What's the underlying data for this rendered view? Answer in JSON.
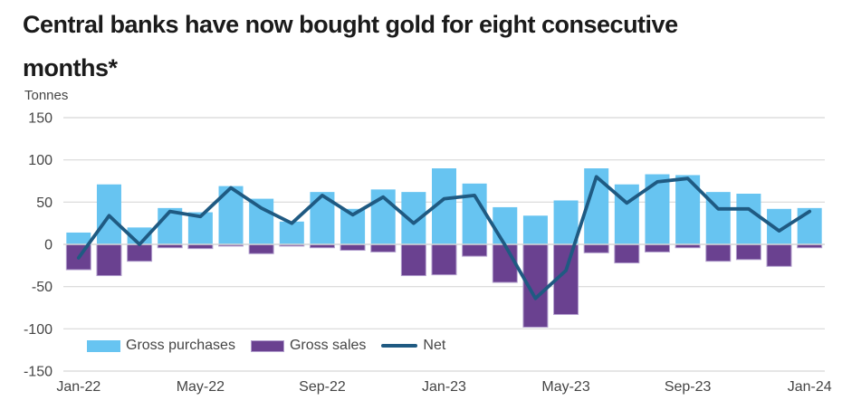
{
  "header": {
    "title_lines": [
      "Central banks have now bought gold for eight consecutive",
      "months*"
    ]
  },
  "chart_data": {
    "type": "bar",
    "subtype": "combo-bar-line",
    "unit_label": "Tonnes",
    "ylim": [
      -150,
      150
    ],
    "y_ticks": [
      150,
      100,
      50,
      0,
      -50,
      -100,
      -150
    ],
    "grid": true,
    "legend_position": "bottom-inside",
    "categories": [
      "Jan-22",
      "Feb-22",
      "Mar-22",
      "Apr-22",
      "May-22",
      "Jun-22",
      "Jul-22",
      "Aug-22",
      "Sep-22",
      "Oct-22",
      "Nov-22",
      "Dec-22",
      "Jan-23",
      "Feb-23",
      "Mar-23",
      "Apr-23",
      "May-23",
      "Jun-23",
      "Jul-23",
      "Aug-23",
      "Sep-23",
      "Oct-23",
      "Nov-23",
      "Dec-23",
      "Jan-24"
    ],
    "x_tick_indices": [
      0,
      4,
      8,
      12,
      16,
      20,
      24
    ],
    "x_tick_labels": [
      "Jan-22",
      "May-22",
      "Sep-22",
      "Jan-23",
      "May-23",
      "Sep-23",
      "Jan-24"
    ],
    "series": [
      {
        "name": "Gross purchases",
        "type": "bar",
        "color": "#67C4F1",
        "values": [
          14,
          71,
          20,
          43,
          38,
          69,
          54,
          27,
          62,
          42,
          65,
          62,
          90,
          72,
          44,
          34,
          52,
          90,
          71,
          83,
          82,
          62,
          60,
          42,
          43
        ]
      },
      {
        "name": "Gross sales",
        "type": "bar",
        "color": "#6A4190",
        "values": [
          -30,
          -37,
          -20,
          -4,
          -5,
          -2,
          -11,
          -2,
          -4,
          -7,
          -9,
          -37,
          -36,
          -14,
          -45,
          -98,
          -83,
          -10,
          -22,
          -9,
          -4,
          -20,
          -18,
          -26,
          -4
        ]
      },
      {
        "name": "Net",
        "type": "line",
        "color": "#1F5A82",
        "values": [
          -16,
          34,
          0,
          39,
          33,
          67,
          43,
          25,
          58,
          35,
          56,
          25,
          54,
          58,
          -1,
          -64,
          -31,
          80,
          49,
          74,
          78,
          42,
          42,
          16,
          39
        ]
      }
    ],
    "colors": {
      "grid": "#D8D8D8",
      "axis_text": "#454545",
      "sales_border": "#B3A0CE",
      "title_text": "#1B1B1B"
    }
  }
}
